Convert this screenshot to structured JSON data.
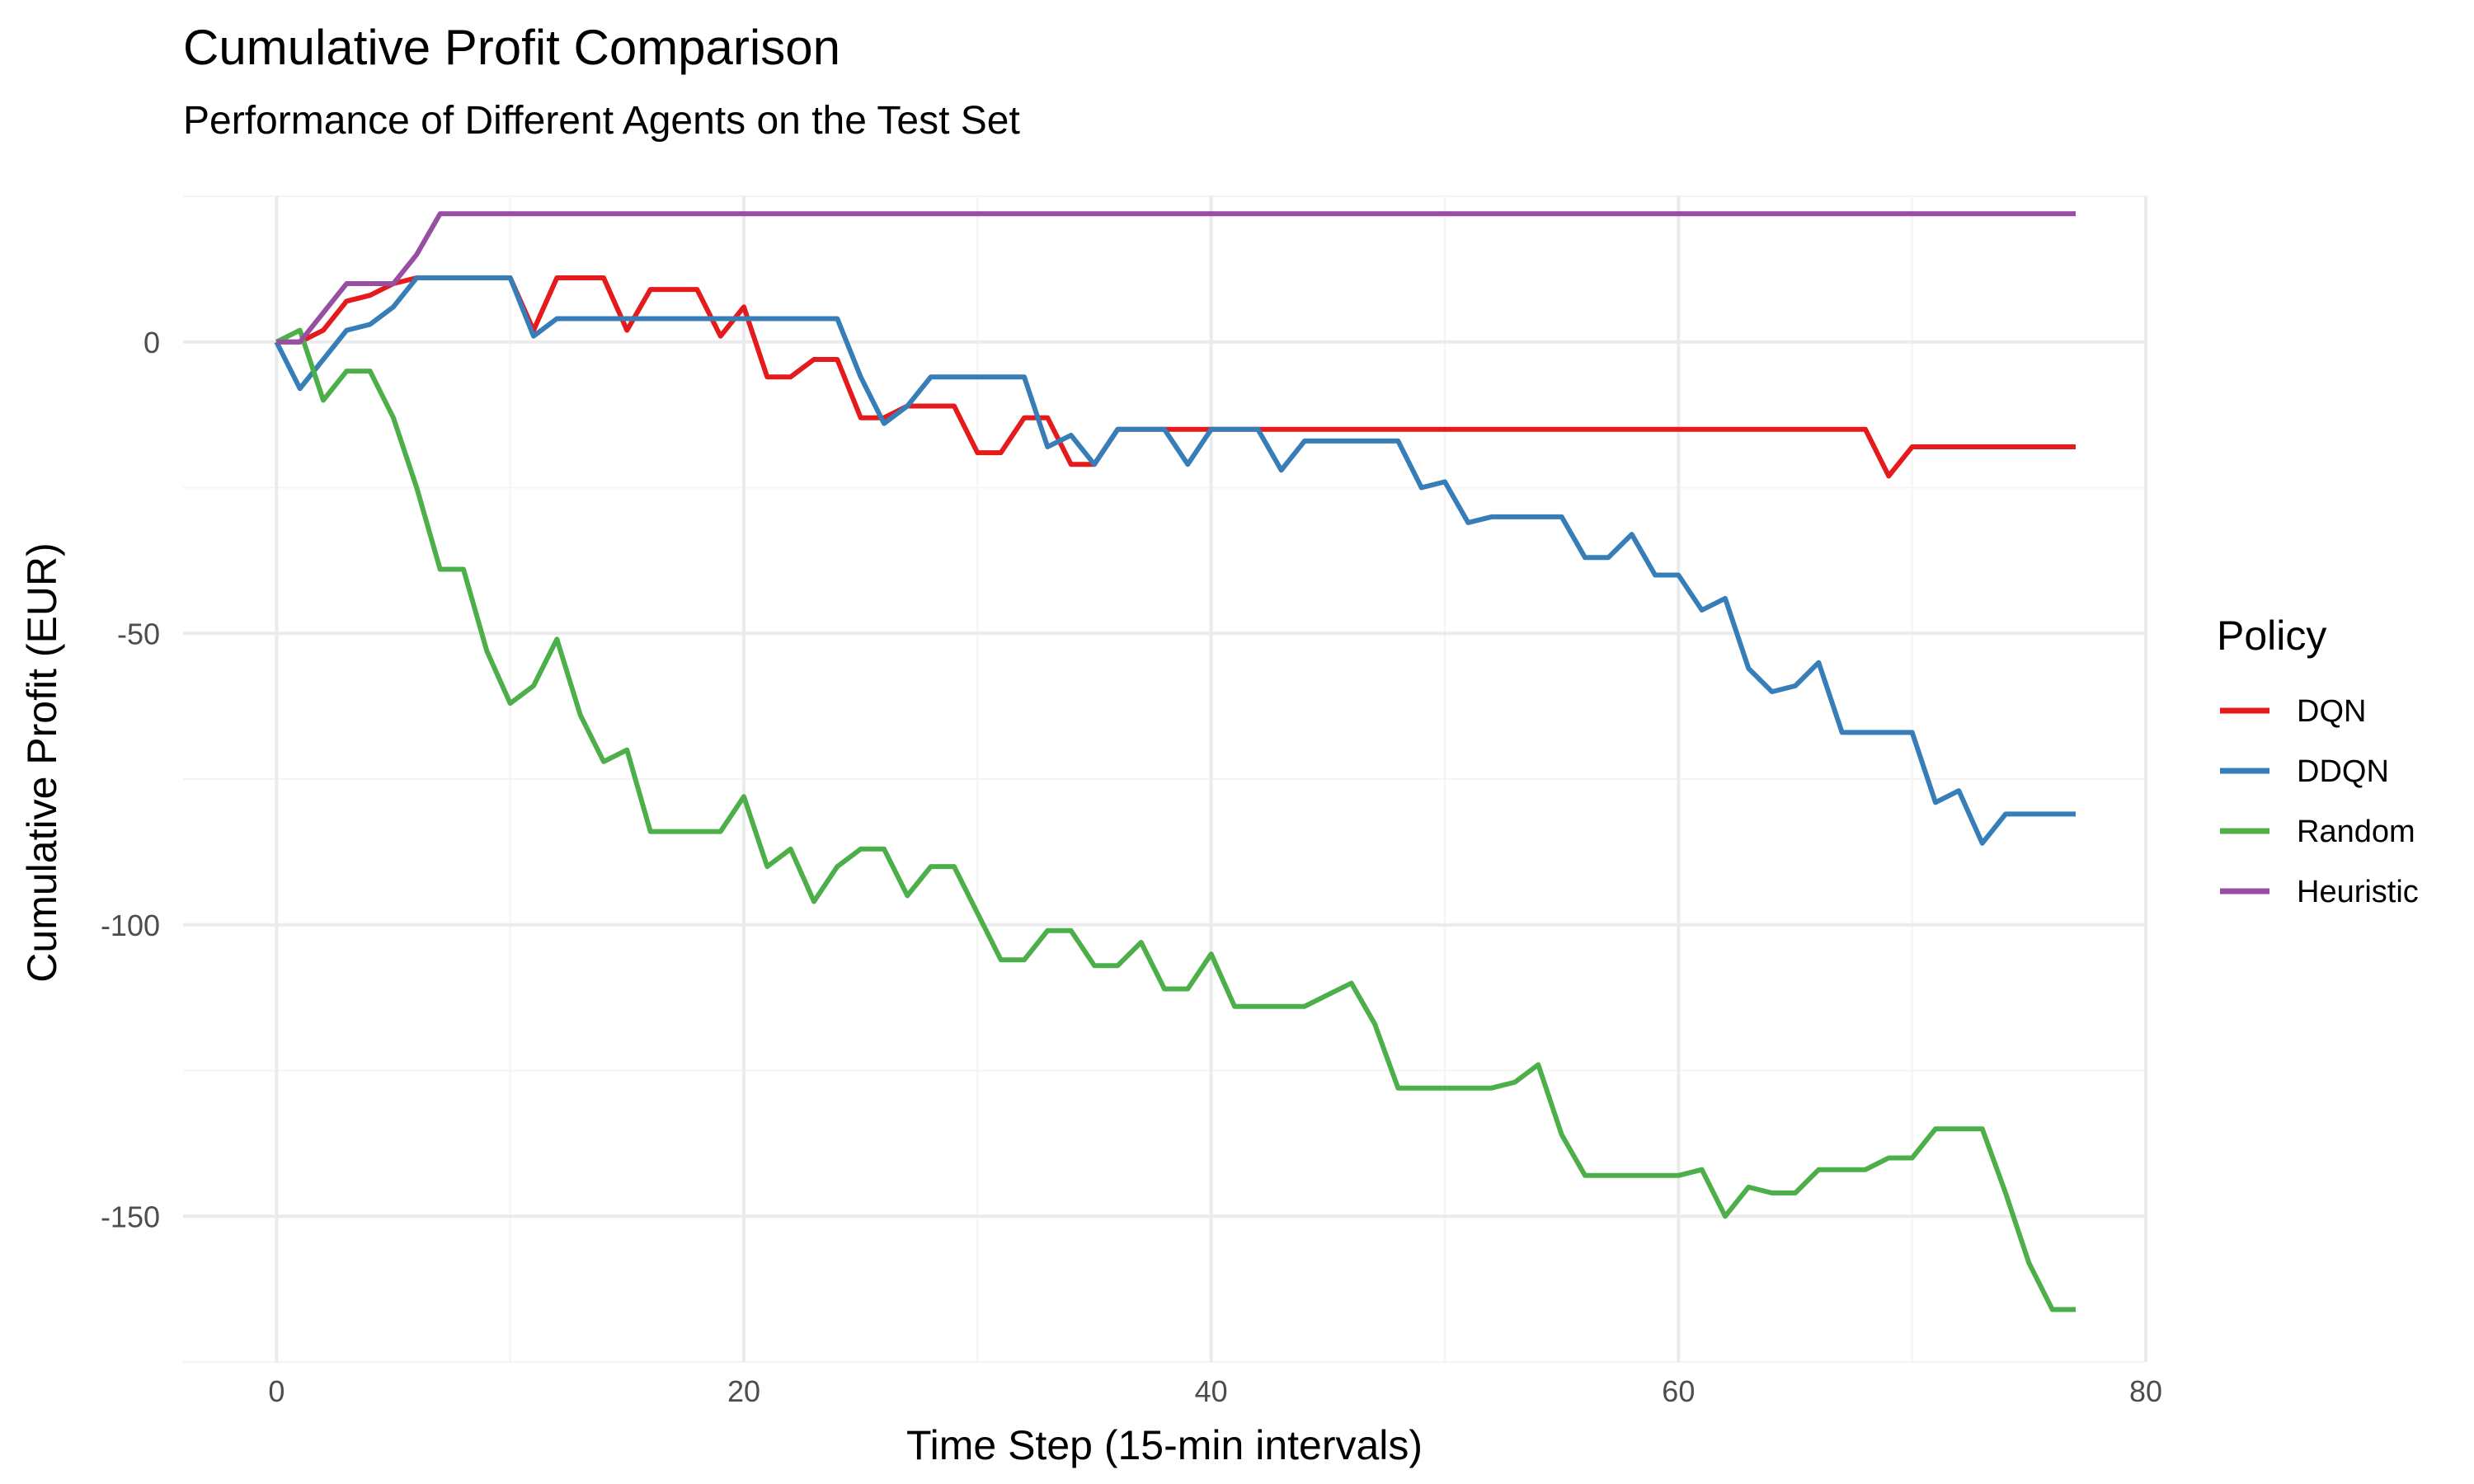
{
  "chart_data": {
    "type": "line",
    "title": "Cumulative Profit Comparison",
    "subtitle": "Performance of Different Agents on the Test Set",
    "xlabel": "Time Step (15-min intervals)",
    "ylabel": "Cumulative Profit (EUR)",
    "xlim": [
      -4,
      80
    ],
    "ylim": [
      -175,
      25
    ],
    "x_ticks": [
      0,
      20,
      40,
      60,
      80
    ],
    "y_ticks": [
      -150,
      -100,
      -50,
      0
    ],
    "x_tick_labels": [
      "0",
      "20",
      "40",
      "60",
      "80"
    ],
    "y_tick_labels": [
      "-150",
      "-100",
      "-50",
      "0"
    ],
    "grid": true,
    "legend": {
      "title": "Policy",
      "position": "right"
    },
    "x": [
      0,
      1,
      2,
      3,
      4,
      5,
      6,
      7,
      8,
      9,
      10,
      11,
      12,
      13,
      14,
      15,
      16,
      17,
      18,
      19,
      20,
      21,
      22,
      23,
      24,
      25,
      26,
      27,
      28,
      29,
      30,
      31,
      32,
      33,
      34,
      35,
      36,
      37,
      38,
      39,
      40,
      41,
      42,
      43,
      44,
      45,
      46,
      47,
      48,
      49,
      50,
      51,
      52,
      53,
      54,
      55,
      56,
      57,
      58,
      59,
      60,
      61,
      62,
      63,
      64,
      65,
      66,
      67,
      68,
      69,
      70,
      71,
      72,
      73,
      74,
      75,
      76,
      77
    ],
    "series": [
      {
        "name": "DQN",
        "color": "#e41a1c",
        "values": [
          0,
          0,
          2,
          7,
          8,
          10,
          11,
          11,
          11,
          11,
          11,
          2,
          11,
          11,
          11,
          2,
          9,
          9,
          9,
          1,
          6,
          -6,
          -6,
          -3,
          -3,
          -13,
          -13,
          -11,
          -11,
          -11,
          -19,
          -19,
          -13,
          -13,
          -21,
          -21,
          -15,
          -15,
          -15,
          -15,
          -15,
          -15,
          -15,
          -15,
          -15,
          -15,
          -15,
          -15,
          -15,
          -15,
          -15,
          -15,
          -15,
          -15,
          -15,
          -15,
          -15,
          -15,
          -15,
          -15,
          -15,
          -15,
          -15,
          -15,
          -15,
          -15,
          -15,
          -15,
          -15,
          -23,
          -18,
          -18,
          -18,
          -18,
          -18,
          -18,
          -18,
          -18
        ]
      },
      {
        "name": "DDQN",
        "color": "#377eb8",
        "values": [
          0,
          -8,
          -3,
          2,
          3,
          6,
          11,
          11,
          11,
          11,
          11,
          1,
          4,
          4,
          4,
          4,
          4,
          4,
          4,
          4,
          4,
          4,
          4,
          4,
          4,
          -6,
          -14,
          -11,
          -6,
          -6,
          -6,
          -6,
          -6,
          -18,
          -16,
          -21,
          -15,
          -15,
          -15,
          -21,
          -15,
          -15,
          -15,
          -22,
          -17,
          -17,
          -17,
          -17,
          -17,
          -25,
          -24,
          -31,
          -30,
          -30,
          -30,
          -30,
          -37,
          -37,
          -33,
          -40,
          -40,
          -46,
          -44,
          -56,
          -60,
          -59,
          -55,
          -67,
          -67,
          -67,
          -67,
          -79,
          -77,
          -86,
          -81,
          -81,
          -81,
          -81
        ]
      },
      {
        "name": "Random",
        "color": "#4daf4a",
        "values": [
          0,
          2,
          -10,
          -5,
          -5,
          -13,
          -25,
          -39,
          -39,
          -53,
          -62,
          -59,
          -51,
          -64,
          -72,
          -70,
          -84,
          -84,
          -84,
          -84,
          -78,
          -90,
          -87,
          -96,
          -90,
          -87,
          -87,
          -95,
          -90,
          -90,
          -98,
          -106,
          -106,
          -101,
          -101,
          -107,
          -107,
          -103,
          -111,
          -111,
          -105,
          -114,
          -114,
          -114,
          -114,
          -112,
          -110,
          -117,
          -128,
          -128,
          -128,
          -128,
          -128,
          -127,
          -124,
          -136,
          -143,
          -143,
          -143,
          -143,
          -143,
          -142,
          -150,
          -145,
          -146,
          -146,
          -142,
          -142,
          -142,
          -140,
          -140,
          -135,
          -135,
          -135,
          -146,
          -158,
          -166,
          -166
        ]
      },
      {
        "name": "Heuristic",
        "color": "#984ea3",
        "values": [
          0,
          0,
          5,
          10,
          10,
          10,
          15,
          22,
          22,
          22,
          22,
          22,
          22,
          22,
          22,
          22,
          22,
          22,
          22,
          22,
          22,
          22,
          22,
          22,
          22,
          22,
          22,
          22,
          22,
          22,
          22,
          22,
          22,
          22,
          22,
          22,
          22,
          22,
          22,
          22,
          22,
          22,
          22,
          22,
          22,
          22,
          22,
          22,
          22,
          22,
          22,
          22,
          22,
          22,
          22,
          22,
          22,
          22,
          22,
          22,
          22,
          22,
          22,
          22,
          22,
          22,
          22,
          22,
          22,
          22,
          22,
          22,
          22,
          22,
          22,
          22,
          22,
          22
        ]
      }
    ]
  }
}
